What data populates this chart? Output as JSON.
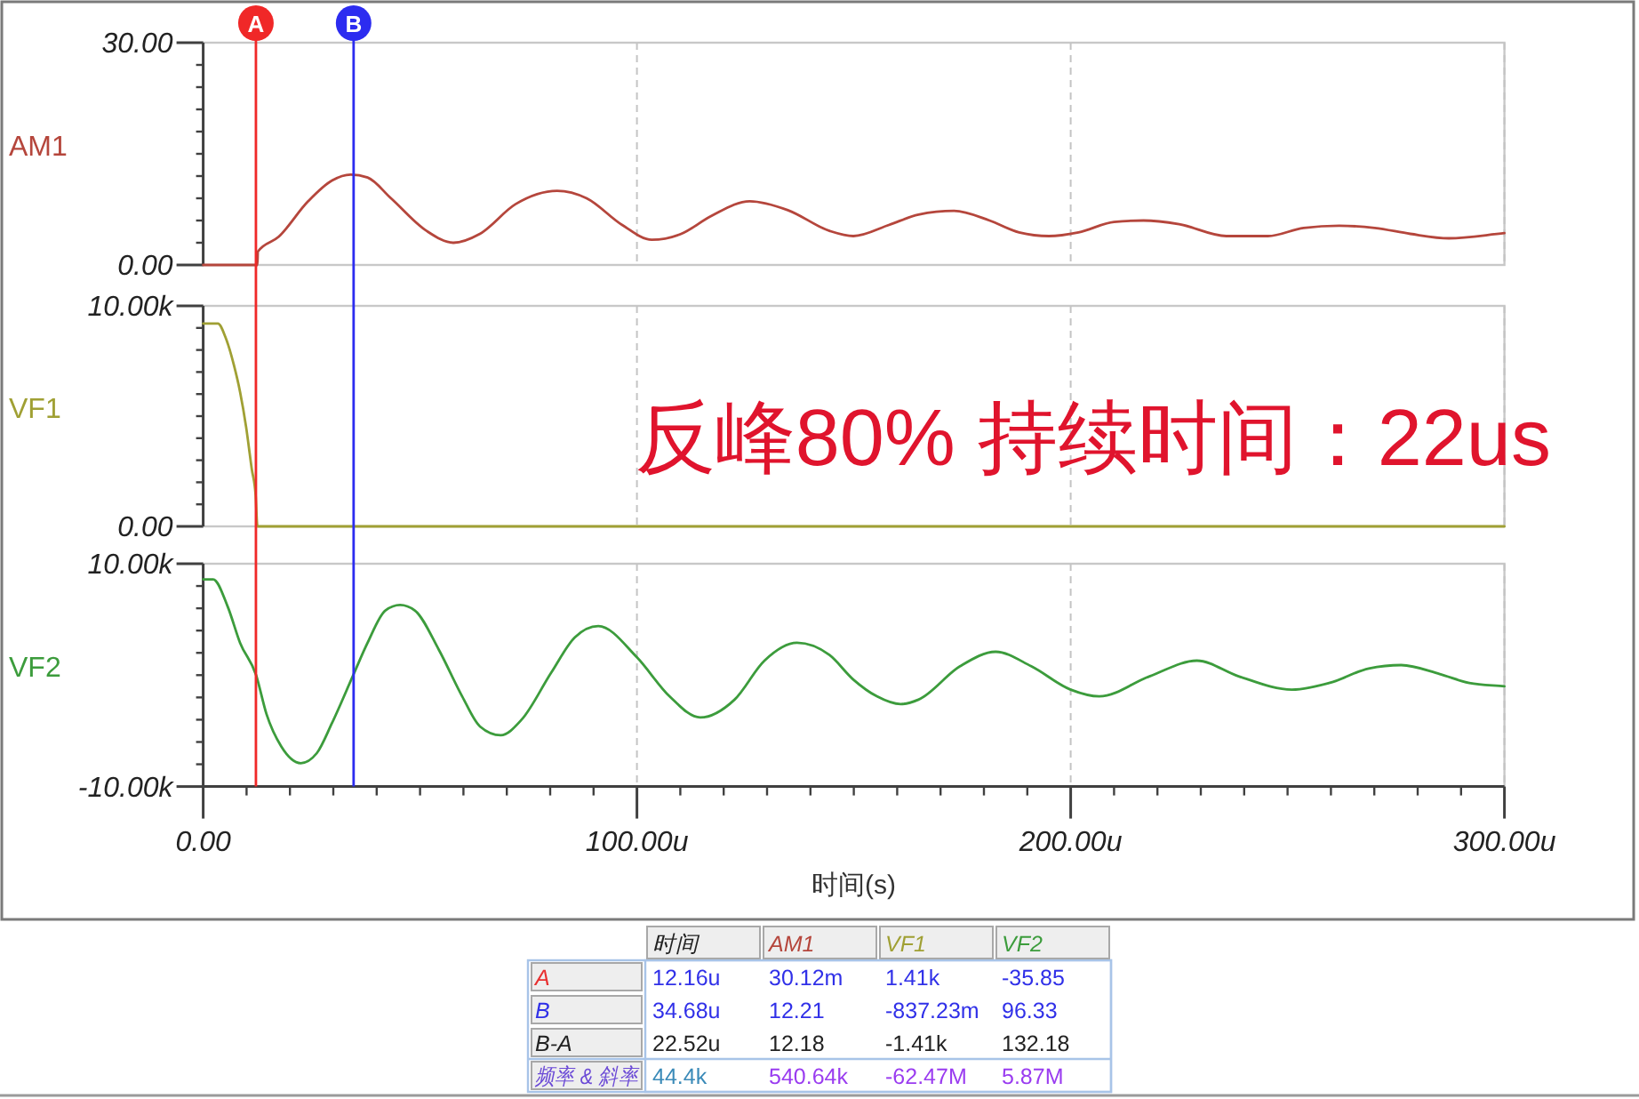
{
  "chart_data": [
    {
      "type": "line",
      "ylabel": "AM1",
      "x": [
        0,
        12.2,
        12.5,
        12.6,
        17.4,
        24.2,
        29.7,
        34.0,
        37.9,
        43.3,
        51.5,
        57.7,
        63.8,
        72.0,
        81.6,
        88.4,
        96.6,
        103.4,
        110.2,
        117.1,
        126.0,
        134.8,
        144.4,
        149.9,
        158.1,
        164.9,
        173.1,
        181.3,
        188.1,
        195.0,
        201.8,
        210.0,
        216.8,
        225.0,
        235.9,
        245.5,
        253.7,
        261.9,
        270.1,
        278.3,
        287.2,
        300
      ],
      "series": [
        {
          "color": "#b5463c",
          "values": [
            0,
            0,
            0,
            1.8,
            3.8,
            8.6,
            11.4,
            12.2,
            11.8,
            9.0,
            4.6,
            3.0,
            4.2,
            8.2,
            10.0,
            9.0,
            5.4,
            3.4,
            4.2,
            6.6,
            8.6,
            7.4,
            4.6,
            3.9,
            5.4,
            6.8,
            7.3,
            6.0,
            4.4,
            3.9,
            4.4,
            5.8,
            6.0,
            5.5,
            3.9,
            3.9,
            5.0,
            5.3,
            5.0,
            4.2,
            3.6,
            4.3
          ]
        }
      ],
      "xlim": [
        0,
        300
      ],
      "xticks": [
        0,
        100,
        200,
        300
      ],
      "ylim": [
        0,
        30
      ],
      "yticks": [
        {
          "value": 0,
          "label": "0.00"
        },
        {
          "value": 3,
          "label": null
        },
        {
          "value": 6,
          "label": null
        },
        {
          "value": 9,
          "label": null
        },
        {
          "value": 12,
          "label": null
        },
        {
          "value": 15,
          "label": null
        },
        {
          "value": 18,
          "label": null
        },
        {
          "value": 21,
          "label": null
        },
        {
          "value": 24,
          "label": null
        },
        {
          "value": 27,
          "label": null
        },
        {
          "value": 30,
          "label": "30.00"
        }
      ],
      "grid": "x",
      "tick_labels": "y",
      "ref_lines": [
        {
          "axis": "x",
          "value": 12.16,
          "label": "A",
          "color": "#f02828"
        },
        {
          "axis": "x",
          "value": 34.68,
          "label": "B",
          "color": "#2c2cf0"
        }
      ]
    },
    {
      "type": "line",
      "ylabel": "VF1",
      "x": [
        0,
        3.4,
        5.1,
        7.1,
        8.5,
        9.9,
        11.2,
        12.1,
        12.5,
        300
      ],
      "series": [
        {
          "color": "#a0a034",
          "values": [
            9200,
            9200,
            8600,
            7300,
            6100,
            4500,
            2600,
            1400,
            0,
            0
          ]
        }
      ],
      "xlim": [
        0,
        300
      ],
      "xticks": [
        0,
        100,
        200,
        300
      ],
      "ylim": [
        0,
        10000
      ],
      "yticks": [
        {
          "value": 0,
          "label": "0.00"
        },
        {
          "value": 1000,
          "label": null
        },
        {
          "value": 2000,
          "label": null
        },
        {
          "value": 3000,
          "label": null
        },
        {
          "value": 4000,
          "label": null
        },
        {
          "value": 5000,
          "label": null
        },
        {
          "value": 6000,
          "label": null
        },
        {
          "value": 7000,
          "label": null
        },
        {
          "value": 8000,
          "label": null
        },
        {
          "value": 9000,
          "label": null
        },
        {
          "value": 10000,
          "label": "10.00k"
        }
      ],
      "grid": "x",
      "tick_labels": "y",
      "ref_lines": [
        {
          "axis": "x",
          "value": 12.16,
          "color": "#f02828"
        },
        {
          "axis": "x",
          "value": 34.68,
          "color": "#2c2cf0"
        }
      ],
      "annotations": [
        "反峰80% 持续时间：22us"
      ]
    },
    {
      "type": "line",
      "ylabel": "VF2",
      "xlabel": "时间(s)",
      "x": [
        0,
        2.3,
        5.7,
        8.5,
        12.2,
        14.6,
        18.0,
        22.5,
        26.2,
        29.7,
        34.7,
        37.9,
        42.0,
        45.4,
        48.8,
        54.3,
        59.7,
        63.8,
        68.6,
        73.4,
        80.2,
        85.7,
        91.1,
        100.0,
        107.5,
        114.6,
        122.5,
        129.4,
        136.9,
        144.4,
        149.9,
        155.3,
        160.8,
        164.9,
        174.5,
        182.7,
        190.9,
        200.0,
        206.6,
        218.2,
        229.1,
        238.7,
        251.0,
        260.5,
        268.7,
        276.2,
        285.1,
        291.9,
        300
      ],
      "series": [
        {
          "color": "#3c9c3c",
          "values": [
            8600,
            8600,
            6100,
            2900,
            0,
            -3500,
            -6400,
            -7900,
            -7000,
            -4300,
            100,
            2900,
            5800,
            6300,
            5800,
            2300,
            -1900,
            -4600,
            -5400,
            -4000,
            200,
            3400,
            4400,
            1600,
            -1900,
            -3800,
            -2200,
            1300,
            2900,
            1800,
            -400,
            -1900,
            -2600,
            -2200,
            800,
            2100,
            800,
            -1300,
            -1900,
            -100,
            1300,
            -100,
            -1300,
            -600,
            600,
            900,
            100,
            -700,
            -1000
          ]
        }
      ],
      "xlim": [
        0,
        300
      ],
      "xticks": [
        {
          "value": 0,
          "label": "0.00"
        },
        {
          "value": 10,
          "label": null
        },
        {
          "value": 20,
          "label": null
        },
        {
          "value": 30,
          "label": null
        },
        {
          "value": 40,
          "label": null
        },
        {
          "value": 50,
          "label": null
        },
        {
          "value": 60,
          "label": null
        },
        {
          "value": 70,
          "label": null
        },
        {
          "value": 80,
          "label": null
        },
        {
          "value": 90,
          "label": null
        },
        {
          "value": 100,
          "label": "100.00u"
        },
        {
          "value": 110,
          "label": null
        },
        {
          "value": 120,
          "label": null
        },
        {
          "value": 130,
          "label": null
        },
        {
          "value": 140,
          "label": null
        },
        {
          "value": 150,
          "label": null
        },
        {
          "value": 160,
          "label": null
        },
        {
          "value": 170,
          "label": null
        },
        {
          "value": 180,
          "label": null
        },
        {
          "value": 190,
          "label": null
        },
        {
          "value": 200,
          "label": "200.00u"
        },
        {
          "value": 210,
          "label": null
        },
        {
          "value": 220,
          "label": null
        },
        {
          "value": 230,
          "label": null
        },
        {
          "value": 240,
          "label": null
        },
        {
          "value": 250,
          "label": null
        },
        {
          "value": 260,
          "label": null
        },
        {
          "value": 270,
          "label": null
        },
        {
          "value": 280,
          "label": null
        },
        {
          "value": 290,
          "label": null
        },
        {
          "value": 300,
          "label": "300.00u"
        }
      ],
      "ylim": [
        -10000,
        10000
      ],
      "yticks": [
        {
          "value": -10000,
          "label": "-10.00k"
        },
        {
          "value": -8000,
          "label": null
        },
        {
          "value": -6000,
          "label": null
        },
        {
          "value": -4000,
          "label": null
        },
        {
          "value": -2000,
          "label": null
        },
        {
          "value": 0,
          "label": null
        },
        {
          "value": 2000,
          "label": null
        },
        {
          "value": 4000,
          "label": null
        },
        {
          "value": 6000,
          "label": null
        },
        {
          "value": 8000,
          "label": null
        },
        {
          "value": 10000,
          "label": "10.00k"
        }
      ],
      "grid": "x",
      "ref_lines": [
        {
          "axis": "x",
          "value": 12.16,
          "color": "#f02828"
        },
        {
          "axis": "x",
          "value": 34.68,
          "color": "#2c2cf0"
        }
      ]
    },
    {
      "type": "other",
      "categories": [
        "时间",
        "AM1",
        "VF1",
        "VF2"
      ],
      "y_categories": [
        "A",
        "B",
        "B-A",
        "频率 & 斜率"
      ],
      "cell_labels": [
        [
          "12.16u",
          "30.12m",
          "1.41k",
          "-35.85"
        ],
        [
          "34.68u",
          "12.21",
          "-837.23m",
          "96.33"
        ],
        [
          "22.52u",
          "12.18",
          "-1.41k",
          "132.18"
        ],
        [
          "44.4k",
          "540.64k",
          "-62.47M",
          "5.87M"
        ]
      ]
    }
  ]
}
